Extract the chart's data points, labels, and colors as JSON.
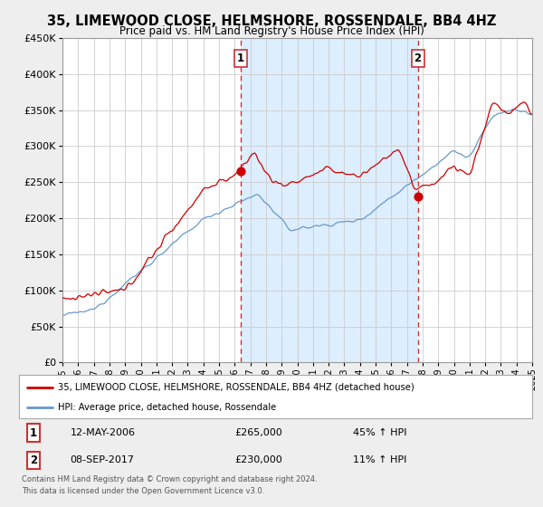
{
  "title": "35, LIMEWOOD CLOSE, HELMSHORE, ROSSENDALE, BB4 4HZ",
  "subtitle": "Price paid vs. HM Land Registry's House Price Index (HPI)",
  "legend_line1": "35, LIMEWOOD CLOSE, HELMSHORE, ROSSENDALE, BB4 4HZ (detached house)",
  "legend_line2": "HPI: Average price, detached house, Rossendale",
  "sale1_date": "12-MAY-2006",
  "sale1_price": "£265,000",
  "sale1_hpi": "45% ↑ HPI",
  "sale2_date": "08-SEP-2017",
  "sale2_price": "£230,000",
  "sale2_hpi": "11% ↑ HPI",
  "footnote1": "Contains HM Land Registry data © Crown copyright and database right 2024.",
  "footnote2": "This data is licensed under the Open Government Licence v3.0.",
  "ylim_min": 0,
  "ylim_max": 450000,
  "xlim_min": 1995,
  "xlim_max": 2025,
  "sale1_year": 2006.37,
  "sale1_value": 265000,
  "sale2_year": 2017.69,
  "sale2_value": 230000,
  "line_color_red": "#cc0000",
  "line_color_blue": "#6699cc",
  "vline_color": "#cc3333",
  "background_color": "#eeeeee",
  "plot_bg_color": "#ffffff",
  "shade_color": "#ddeeff",
  "grid_color": "#cccccc"
}
